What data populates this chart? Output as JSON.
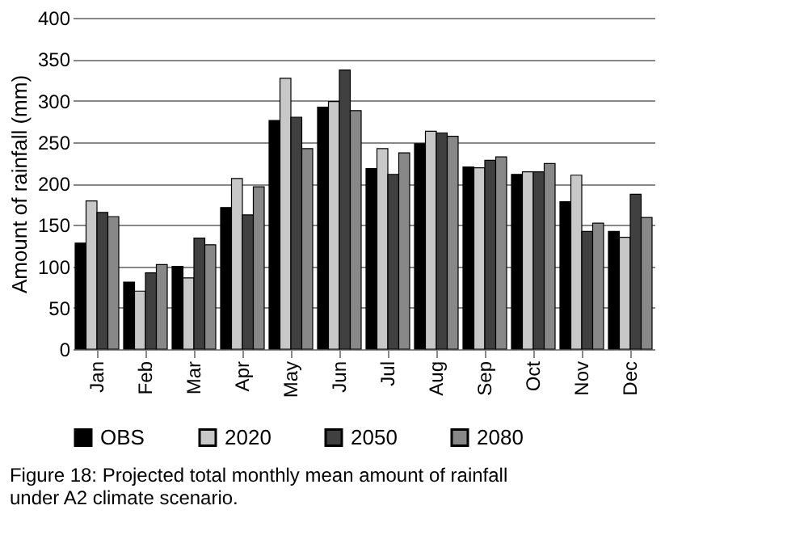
{
  "chart_data": {
    "type": "bar",
    "ylabel": "Amount of rainfall (mm)",
    "categories": [
      "Jan",
      "Feb",
      "Mar",
      "Apr",
      "May",
      "Jun",
      "Jul",
      "Aug",
      "Sep",
      "Oct",
      "Nov",
      "Dec"
    ],
    "series": [
      {
        "name": "OBS",
        "color": "#000000",
        "values": [
          128,
          81,
          100,
          171,
          276,
          292,
          218,
          248,
          220,
          211,
          178,
          142
        ]
      },
      {
        "name": "2020",
        "color": "#c8c8c8",
        "values": [
          179,
          70,
          86,
          206,
          327,
          299,
          242,
          263,
          219,
          214,
          210,
          135
        ]
      },
      {
        "name": "2050",
        "color": "#404040",
        "values": [
          165,
          92,
          134,
          162,
          280,
          337,
          211,
          261,
          228,
          214,
          142,
          187
        ]
      },
      {
        "name": "2080",
        "color": "#888888",
        "values": [
          160,
          102,
          126,
          196,
          242,
          288,
          237,
          257,
          232,
          224,
          152,
          159
        ]
      }
    ],
    "ylim": [
      0,
      400
    ],
    "yticks": [
      0,
      50,
      100,
      150,
      200,
      250,
      300,
      350,
      400
    ],
    "grid": "y",
    "legend": "bottom",
    "annotations": [
      "Figure 18: Projected total monthly mean amount of rainfall under A2 climate scenario."
    ]
  }
}
